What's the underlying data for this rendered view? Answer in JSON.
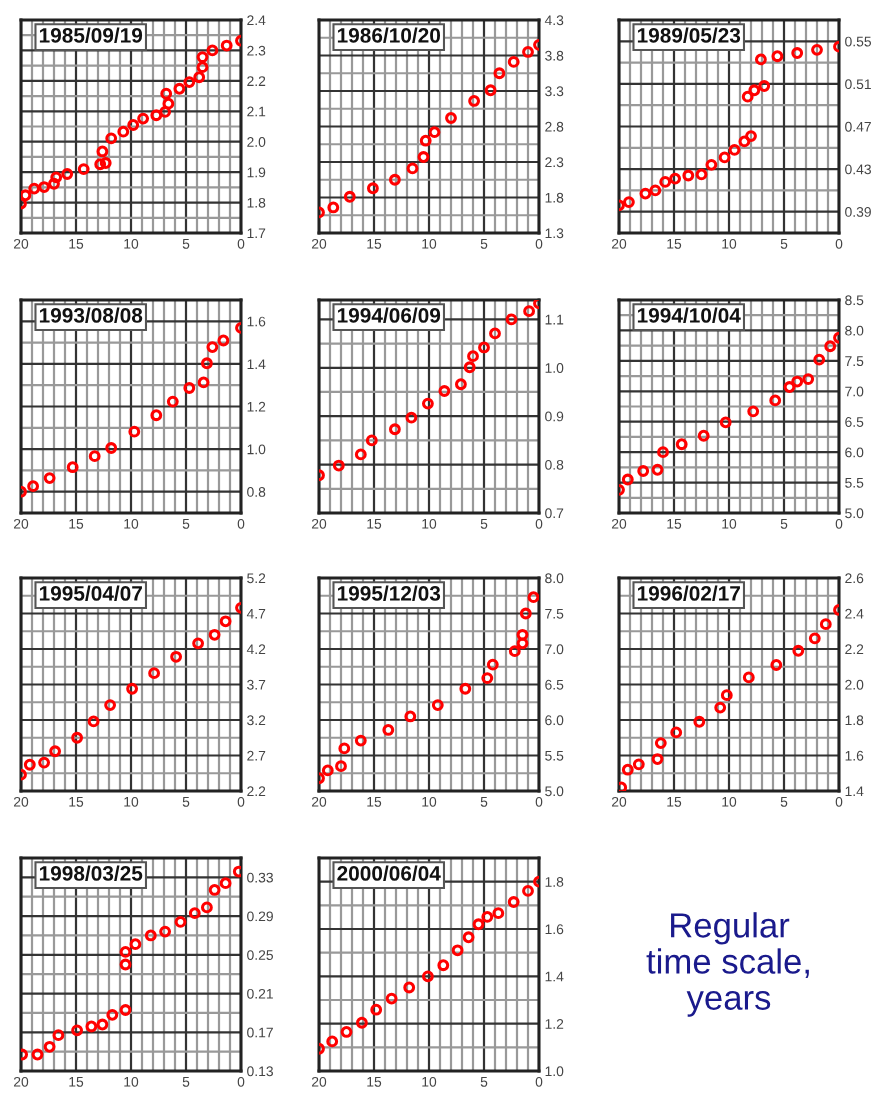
{
  "chart_data": [
    {
      "type": "scatter",
      "title": "1985/09/19",
      "xlim": [
        20,
        0
      ],
      "xticks": [
        20,
        15,
        10,
        5,
        0
      ],
      "ylim": [
        1.7,
        2.4
      ],
      "yticks": [
        1.7,
        1.8,
        1.9,
        {
          "value": 2,
          "label": "2.0"
        },
        2.1,
        2.2,
        2.3,
        2.4
      ],
      "grid": true,
      "marker": "circle",
      "x": [
        20,
        19.6,
        18.8,
        17.9,
        17.0,
        16.8,
        15.8,
        14.3,
        12.8,
        12.3,
        12.6,
        11.8,
        10.7,
        9.8,
        8.9,
        7.7,
        6.9,
        6.6,
        6.8,
        5.6,
        4.7,
        3.8,
        3.5,
        3.5,
        2.6,
        1.3,
        0
      ],
      "series": [
        {
          "color": "#ff0000",
          "values": [
            1.797,
            1.824,
            1.846,
            1.851,
            1.862,
            1.883,
            1.894,
            1.91,
            1.926,
            1.93,
            1.968,
            2.011,
            2.033,
            2.055,
            2.076,
            2.087,
            2.098,
            2.125,
            2.158,
            2.174,
            2.196,
            2.212,
            2.245,
            2.278,
            2.3,
            2.316,
            2.332
          ]
        }
      ]
    },
    {
      "type": "scatter",
      "title": "1986/10/20",
      "xlim": [
        20,
        0
      ],
      "xticks": [
        20,
        15,
        10,
        5,
        0
      ],
      "ylim": [
        1.3,
        4.3
      ],
      "yticks": [
        1.3,
        1.8,
        2.3,
        2.8,
        3.3,
        3.8,
        4.3
      ],
      "grid": true,
      "marker": "circle",
      "x": [
        20,
        18.7,
        17.2,
        15.1,
        13.1,
        11.5,
        10.5,
        10.3,
        9.5,
        8.0,
        5.9,
        4.4,
        3.6,
        2.3,
        1.0,
        0
      ],
      "series": [
        {
          "color": "#ff0000",
          "values": [
            1.59,
            1.66,
            1.81,
            1.93,
            2.05,
            2.21,
            2.37,
            2.6,
            2.72,
            2.92,
            3.16,
            3.31,
            3.55,
            3.71,
            3.85,
            3.95
          ]
        }
      ]
    },
    {
      "type": "scatter",
      "title": "1989/05/23",
      "xlim": [
        20,
        0
      ],
      "xticks": [
        20,
        15,
        10,
        5,
        0
      ],
      "ylim": [
        0.37,
        0.57
      ],
      "yticks": [
        0.39,
        0.43,
        0.47,
        0.51,
        0.55
      ],
      "grid": true,
      "marker": "circle",
      "x": [
        20,
        19.1,
        17.6,
        16.7,
        15.8,
        14.9,
        13.7,
        12.5,
        11.6,
        10.4,
        9.5,
        8.6,
        8.0,
        8.3,
        7.7,
        6.8,
        7.1,
        5.6,
        3.8,
        2.0,
        0
      ],
      "series": [
        {
          "color": "#ff0000",
          "values": [
            0.396,
            0.399,
            0.407,
            0.41,
            0.418,
            0.421,
            0.424,
            0.425,
            0.434,
            0.441,
            0.448,
            0.456,
            0.461,
            0.498,
            0.504,
            0.508,
            0.533,
            0.536,
            0.539,
            0.542,
            0.545
          ]
        }
      ]
    },
    {
      "type": "scatter",
      "title": "1993/08/08",
      "xlim": [
        20,
        0
      ],
      "xticks": [
        20,
        15,
        10,
        5,
        0
      ],
      "ylim": [
        0.7,
        1.7
      ],
      "yticks": [
        0.8,
        {
          "value": 1,
          "label": "1.0"
        },
        1.2,
        1.4,
        1.6
      ],
      "grid": true,
      "marker": "circle",
      "x": [
        20,
        18.9,
        17.4,
        15.3,
        13.3,
        11.8,
        9.7,
        7.7,
        6.2,
        4.7,
        3.4,
        3.1,
        2.6,
        1.6,
        0
      ],
      "series": [
        {
          "color": "#ff0000",
          "values": [
            0.8,
            0.826,
            0.864,
            0.915,
            0.967,
            1.005,
            1.082,
            1.159,
            1.223,
            1.287,
            1.313,
            1.403,
            1.479,
            1.51,
            1.569
          ]
        }
      ]
    },
    {
      "type": "scatter",
      "title": "1994/06/09",
      "xlim": [
        20,
        0
      ],
      "xticks": [
        20,
        15,
        10,
        5,
        0
      ],
      "ylim": [
        0.7,
        1.14
      ],
      "yticks": [
        0.7,
        0.8,
        0.9,
        {
          "value": 1,
          "label": "1.0"
        },
        1.1
      ],
      "grid": true,
      "marker": "circle",
      "x": [
        20,
        18.2,
        16.2,
        15.2,
        13.1,
        11.6,
        10.1,
        8.6,
        7.1,
        6.3,
        6.0,
        5.0,
        4.0,
        2.5,
        0.9,
        0
      ],
      "series": [
        {
          "color": "#ff0000",
          "values": [
            0.778,
            0.798,
            0.821,
            0.85,
            0.873,
            0.897,
            0.926,
            0.952,
            0.966,
            1.001,
            1.024,
            1.042,
            1.071,
            1.1,
            1.117,
            1.133
          ]
        }
      ]
    },
    {
      "type": "scatter",
      "title": "1994/10/04",
      "xlim": [
        20,
        0
      ],
      "xticks": [
        20,
        15,
        10,
        5,
        0
      ],
      "ylim": [
        5.0,
        8.5
      ],
      "yticks": [
        {
          "value": 5,
          "label": "5.0"
        },
        5.5,
        {
          "value": 6,
          "label": "6.0"
        },
        6.5,
        {
          "value": 7,
          "label": "7.0"
        },
        7.5,
        {
          "value": 8,
          "label": "8.0"
        },
        8.5
      ],
      "grid": true,
      "marker": "circle",
      "x": [
        20,
        19.2,
        17.8,
        16.5,
        16.0,
        14.3,
        12.3,
        10.3,
        7.8,
        5.8,
        4.5,
        3.8,
        2.8,
        1.8,
        0.8,
        0
      ],
      "series": [
        {
          "color": "#ff0000",
          "values": [
            5.38,
            5.55,
            5.69,
            5.71,
            6.0,
            6.13,
            6.27,
            6.49,
            6.67,
            6.85,
            7.07,
            7.16,
            7.2,
            7.52,
            7.74,
            7.88
          ]
        }
      ]
    },
    {
      "type": "scatter",
      "title": "1995/04/07",
      "xlim": [
        20,
        0
      ],
      "xticks": [
        20,
        15,
        10,
        5,
        0
      ],
      "ylim": [
        2.2,
        5.2
      ],
      "yticks": [
        2.2,
        2.7,
        3.2,
        3.7,
        4.2,
        4.7,
        5.2
      ],
      "grid": true,
      "marker": "circle",
      "x": [
        20,
        19.2,
        17.9,
        16.9,
        14.9,
        13.4,
        11.9,
        9.9,
        7.9,
        5.9,
        3.9,
        2.4,
        1.4,
        0
      ],
      "series": [
        {
          "color": "#ff0000",
          "values": [
            2.43,
            2.57,
            2.6,
            2.76,
            2.95,
            3.18,
            3.41,
            3.64,
            3.86,
            4.09,
            4.28,
            4.4,
            4.59,
            4.78
          ]
        }
      ]
    },
    {
      "type": "scatter",
      "title": "1995/12/03",
      "xlim": [
        20,
        0
      ],
      "xticks": [
        20,
        15,
        10,
        5,
        0
      ],
      "ylim": [
        5.0,
        8.0
      ],
      "yticks": [
        {
          "value": 5,
          "label": "5.0"
        },
        5.5,
        {
          "value": 6,
          "label": "6.0"
        },
        6.5,
        {
          "value": 7,
          "label": "7.0"
        },
        7.5,
        {
          "value": 8,
          "label": "8.0"
        }
      ],
      "grid": true,
      "marker": "circle",
      "x": [
        20,
        19.2,
        18.0,
        17.7,
        16.2,
        13.7,
        11.7,
        9.2,
        6.7,
        4.7,
        4.2,
        2.2,
        1.5,
        1.5,
        1.2,
        0.5
      ],
      "series": [
        {
          "color": "#ff0000",
          "values": [
            5.18,
            5.29,
            5.35,
            5.6,
            5.71,
            5.86,
            6.05,
            6.21,
            6.44,
            6.59,
            6.78,
            6.97,
            7.08,
            7.2,
            7.5,
            7.73
          ]
        }
      ]
    },
    {
      "type": "scatter",
      "title": "1996/02/17",
      "xlim": [
        20,
        0
      ],
      "xticks": [
        20,
        15,
        10,
        5,
        0
      ],
      "ylim": [
        1.4,
        2.6
      ],
      "yticks": [
        1.4,
        1.6,
        1.8,
        {
          "value": 2,
          "label": "2.0"
        },
        2.2,
        2.4,
        2.6
      ],
      "grid": true,
      "marker": "circle",
      "x": [
        19.8,
        19.2,
        18.2,
        16.5,
        16.2,
        14.8,
        12.7,
        10.8,
        10.2,
        8.2,
        5.7,
        3.7,
        2.2,
        1.2,
        0
      ],
      "series": [
        {
          "color": "#ff0000",
          "values": [
            1.42,
            1.52,
            1.55,
            1.58,
            1.67,
            1.73,
            1.79,
            1.87,
            1.94,
            2.04,
            2.11,
            2.19,
            2.26,
            2.34,
            2.42
          ]
        }
      ]
    },
    {
      "type": "scatter",
      "title": "1998/03/25",
      "xlim": [
        20,
        0
      ],
      "xticks": [
        20,
        15,
        10,
        5,
        0
      ],
      "ylim": [
        0.13,
        0.35
      ],
      "yticks": [
        0.13,
        0.17,
        0.21,
        0.25,
        0.29,
        0.33
      ],
      "grid": true,
      "marker": "circle",
      "x": [
        19.9,
        18.5,
        17.4,
        16.6,
        14.9,
        13.6,
        12.6,
        11.7,
        10.5,
        10.5,
        10.5,
        9.6,
        8.2,
        6.9,
        5.5,
        4.2,
        3.1,
        2.4,
        1.4,
        0.2
      ],
      "series": [
        {
          "color": "#ff0000",
          "values": [
            0.147,
            0.147,
            0.155,
            0.167,
            0.172,
            0.176,
            0.178,
            0.188,
            0.193,
            0.24,
            0.253,
            0.261,
            0.27,
            0.274,
            0.284,
            0.293,
            0.299,
            0.317,
            0.324,
            0.336
          ]
        }
      ]
    },
    {
      "type": "scatter",
      "title": "2000/06/04",
      "xlim": [
        20,
        0
      ],
      "xticks": [
        20,
        15,
        10,
        5,
        0
      ],
      "ylim": [
        1.0,
        1.9
      ],
      "yticks": [
        {
          "value": 1,
          "label": "1.0"
        },
        1.2,
        1.4,
        1.6,
        1.8
      ],
      "grid": true,
      "marker": "circle",
      "x": [
        20,
        18.8,
        17.5,
        16.1,
        14.8,
        13.4,
        11.8,
        10.1,
        8.7,
        7.4,
        6.4,
        5.5,
        4.7,
        3.7,
        2.3,
        1.0,
        0
      ],
      "series": [
        {
          "color": "#ff0000",
          "values": [
            1.094,
            1.125,
            1.165,
            1.204,
            1.259,
            1.306,
            1.353,
            1.4,
            1.447,
            1.51,
            1.565,
            1.62,
            1.651,
            1.667,
            1.714,
            1.761,
            1.8
          ]
        }
      ]
    },
    {
      "type": "other",
      "annotations": [
        "Regular\ntime scale,\nyears"
      ]
    }
  ]
}
